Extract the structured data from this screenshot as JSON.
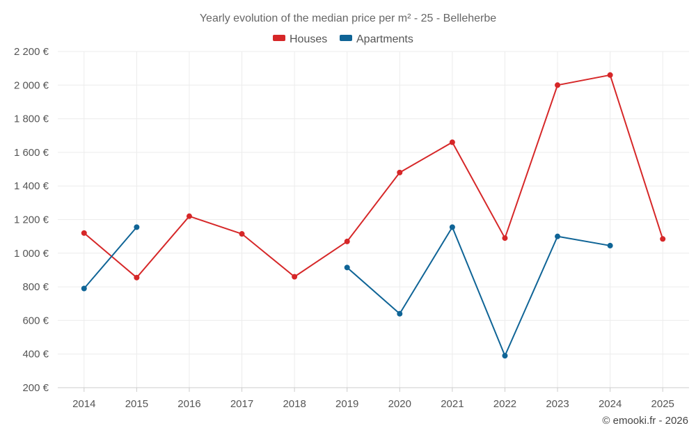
{
  "chart_data": {
    "type": "line",
    "title": "Yearly evolution of the median price per m² - 25 - Belleherbe",
    "categories": [
      "2014",
      "2015",
      "2016",
      "2017",
      "2018",
      "2019",
      "2020",
      "2021",
      "2022",
      "2023",
      "2024",
      "2025"
    ],
    "ylim": [
      200,
      2200
    ],
    "yticks": [
      200,
      400,
      600,
      800,
      1000,
      1200,
      1400,
      1600,
      1800,
      2000,
      2200
    ],
    "ytick_labels": [
      "200 €",
      "400 €",
      "600 €",
      "800 €",
      "1 000 €",
      "1 200 €",
      "1 400 €",
      "1 600 €",
      "1 800 €",
      "2 000 €",
      "2 200 €"
    ],
    "grid": true,
    "legend_position": "top-center",
    "series": [
      {
        "name": "Houses",
        "color": "#d62728",
        "values": [
          1120,
          855,
          1220,
          1115,
          860,
          1070,
          1480,
          1660,
          1090,
          2000,
          2060,
          1085
        ]
      },
      {
        "name": "Apartments",
        "color": "#0f6496",
        "values": [
          790,
          1155,
          null,
          null,
          null,
          915,
          640,
          1155,
          390,
          1100,
          1045,
          null
        ]
      }
    ],
    "footer": "© emooki.fr - 2026"
  }
}
